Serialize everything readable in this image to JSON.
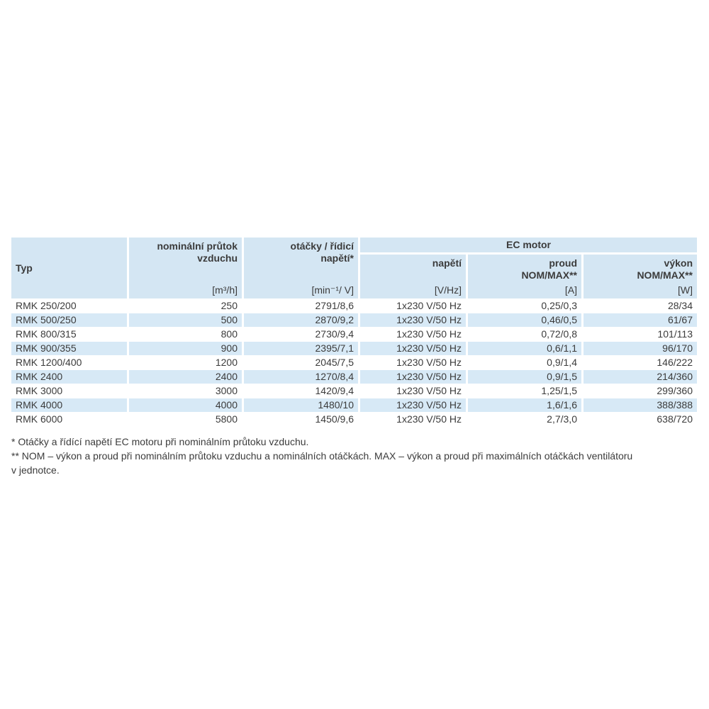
{
  "colors": {
    "header_bg": "#d4e6f3",
    "stripe_bg": "#d7e9f6",
    "text": "#3b3b3b",
    "separator": "#ffffff"
  },
  "table": {
    "header": {
      "typ": {
        "label": "Typ",
        "unit": ""
      },
      "prutok": {
        "label": "nominální průtok\nvzduchu",
        "unit": "[m³/h]"
      },
      "otacky": {
        "label": "otáčky / řídicí\nnapětí*",
        "unit": "[min⁻¹/ V]"
      },
      "group": "EC motor",
      "napeti": {
        "label": "napětí",
        "unit": "[V/Hz]"
      },
      "proud": {
        "label": "proud\nNOM/MAX**",
        "unit": "[A]"
      },
      "vykon": {
        "label": "výkon\nNOM/MAX**",
        "unit": "[W]"
      }
    },
    "row_keys": [
      "typ",
      "prutok",
      "otacky",
      "napeti",
      "proud",
      "vykon"
    ],
    "rows": [
      {
        "typ": "RMK 250/200",
        "prutok": "250",
        "otacky": "2791/8,6",
        "napeti": "1x230 V/50 Hz",
        "proud": "0,25/0,3",
        "vykon": "28/34"
      },
      {
        "typ": "RMK 500/250",
        "prutok": "500",
        "otacky": "2870/9,2",
        "napeti": "1x230 V/50 Hz",
        "proud": "0,46/0,5",
        "vykon": "61/67"
      },
      {
        "typ": "RMK 800/315",
        "prutok": "800",
        "otacky": "2730/9,4",
        "napeti": "1x230 V/50 Hz",
        "proud": "0,72/0,8",
        "vykon": "101/113"
      },
      {
        "typ": "RMK 900/355",
        "prutok": "900",
        "otacky": "2395/7,1",
        "napeti": "1x230 V/50 Hz",
        "proud": "0,6/1,1",
        "vykon": "96/170"
      },
      {
        "typ": "RMK 1200/400",
        "prutok": "1200",
        "otacky": "2045/7,5",
        "napeti": "1x230 V/50 Hz",
        "proud": "0,9/1,4",
        "vykon": "146/222"
      },
      {
        "typ": "RMK 2400",
        "prutok": "2400",
        "otacky": "1270/8,4",
        "napeti": "1x230 V/50 Hz",
        "proud": "0,9/1,5",
        "vykon": "214/360"
      },
      {
        "typ": "RMK 3000",
        "prutok": "3000",
        "otacky": "1420/9,4",
        "napeti": "1x230 V/50 Hz",
        "proud": "1,25/1,5",
        "vykon": "299/360"
      },
      {
        "typ": "RMK 4000",
        "prutok": "4000",
        "otacky": "1480/10",
        "napeti": "1x230 V/50 Hz",
        "proud": "1,6/1,6",
        "vykon": "388/388"
      },
      {
        "typ": "RMK 6000",
        "prutok": "5800",
        "otacky": "1450/9,6",
        "napeti": "1x230 V/50 Hz",
        "proud": "2,7/3,0",
        "vykon": "638/720"
      }
    ]
  },
  "footnotes": [
    "* Otáčky a řídící napětí EC motoru při nominálním průtoku vzduchu.",
    "** NOM – výkon a proud při nominálním průtoku vzduchu a nominálních otáčkách. MAX – výkon a proud při maximálních otáčkách ventilátoru\nv jednotce."
  ]
}
